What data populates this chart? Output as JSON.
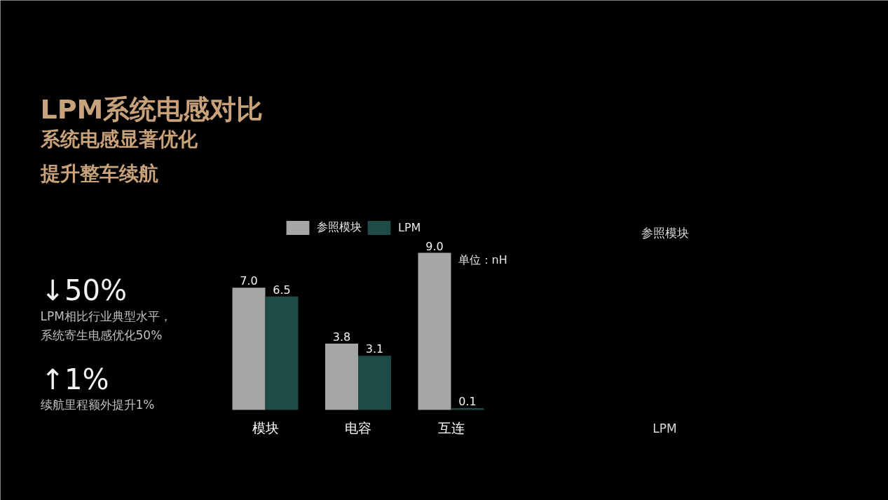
{
  "chart_data": {
    "type": "bar",
    "title": "LPM系统电感对比",
    "subtitle": "系统电感显著优化提升整车续航",
    "categories": [
      "模块",
      "电容",
      "互连"
    ],
    "series": [
      {
        "name": "参照模块",
        "color": "#a6a6a6",
        "values": [
          7.0,
          3.8,
          9.0
        ],
        "value_labels": [
          "7.0",
          "3.8",
          "9.0"
        ]
      },
      {
        "name": "LPM",
        "color": "#1e4b46",
        "values": [
          6.5,
          3.1,
          0.1
        ],
        "value_labels": [
          "6.5",
          "3.1",
          "0.1"
        ]
      }
    ],
    "legend": "top",
    "annotations": [
      "↓50%",
      "LPM相比行业典型水平，系统寄生电感优化50%",
      "↑1%",
      "续航里程额外提升1%",
      "单位：nH",
      "参照模块",
      "LPM"
    ]
  }
}
